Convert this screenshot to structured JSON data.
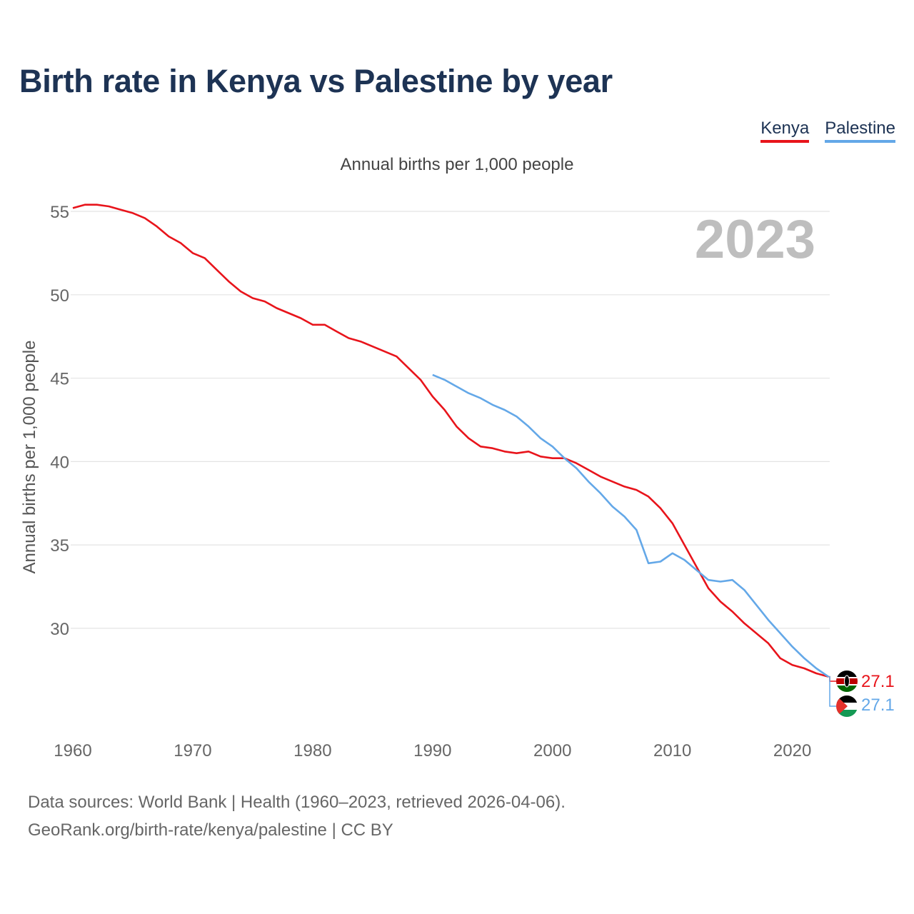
{
  "title": "Birth rate in Kenya vs Palestine by year",
  "subtitle": "Annual births per 1,000 people",
  "year_display": "2023",
  "legend": [
    {
      "label": "Kenya",
      "color": "#e8141b"
    },
    {
      "label": "Palestine",
      "color": "#64a8e8"
    }
  ],
  "footer": {
    "line1": "Data sources: World Bank | Health (1960–2023, retrieved 2026-04-06).",
    "line2": "GeoRank.org/birth-rate/kenya/palestine | CC BY"
  },
  "chart_data": {
    "type": "line",
    "title": "Birth rate in Kenya vs Palestine by year",
    "xlabel": "",
    "ylabel": "Annual births per 1,000 people",
    "xlim": [
      1960,
      2023
    ],
    "ylim": [
      25.5,
      56.5
    ],
    "x_ticks": [
      1960,
      1970,
      1980,
      1990,
      2000,
      2010,
      2020
    ],
    "y_ticks": [
      30,
      35,
      40,
      45,
      50,
      55
    ],
    "grid": true,
    "legend_position": "top-right",
    "series": [
      {
        "name": "Kenya",
        "color": "#e8141b",
        "end_label": "27.1",
        "x": [
          1960,
          1961,
          1962,
          1963,
          1964,
          1965,
          1966,
          1967,
          1968,
          1969,
          1970,
          1971,
          1972,
          1973,
          1974,
          1975,
          1976,
          1977,
          1978,
          1979,
          1980,
          1981,
          1982,
          1983,
          1984,
          1985,
          1986,
          1987,
          1988,
          1989,
          1990,
          1991,
          1992,
          1993,
          1994,
          1995,
          1996,
          1997,
          1998,
          1999,
          2000,
          2001,
          2002,
          2003,
          2004,
          2005,
          2006,
          2007,
          2008,
          2009,
          2010,
          2011,
          2012,
          2013,
          2014,
          2015,
          2016,
          2017,
          2018,
          2019,
          2020,
          2021,
          2022,
          2023
        ],
        "values": [
          55.2,
          55.4,
          55.4,
          55.3,
          55.1,
          54.9,
          54.6,
          54.1,
          53.5,
          53.1,
          52.5,
          52.2,
          51.5,
          50.8,
          50.2,
          49.8,
          49.6,
          49.2,
          48.9,
          48.6,
          48.2,
          48.2,
          47.8,
          47.4,
          47.2,
          46.9,
          46.6,
          46.3,
          45.6,
          44.9,
          43.9,
          43.1,
          42.1,
          41.4,
          40.9,
          40.8,
          40.6,
          40.5,
          40.6,
          40.3,
          40.2,
          40.2,
          39.9,
          39.5,
          39.1,
          38.8,
          38.5,
          38.3,
          37.9,
          37.2,
          36.3,
          35.0,
          33.7,
          32.4,
          31.6,
          31.0,
          30.3,
          29.7,
          29.1,
          28.2,
          27.8,
          27.6,
          27.3,
          27.1
        ]
      },
      {
        "name": "Palestine",
        "color": "#64a8e8",
        "end_label": "27.1",
        "x": [
          1990,
          1991,
          1992,
          1993,
          1994,
          1995,
          1996,
          1997,
          1998,
          1999,
          2000,
          2001,
          2002,
          2003,
          2004,
          2005,
          2006,
          2007,
          2008,
          2009,
          2010,
          2011,
          2012,
          2013,
          2014,
          2015,
          2016,
          2017,
          2018,
          2019,
          2020,
          2021,
          2022,
          2023
        ],
        "values": [
          45.2,
          44.9,
          44.5,
          44.1,
          43.8,
          43.4,
          43.1,
          42.7,
          42.1,
          41.4,
          40.9,
          40.2,
          39.6,
          38.8,
          38.1,
          37.3,
          36.7,
          35.9,
          33.9,
          34.0,
          34.5,
          34.1,
          33.5,
          32.9,
          32.8,
          32.9,
          32.3,
          31.4,
          30.5,
          29.7,
          28.9,
          28.2,
          27.6,
          27.1
        ]
      }
    ]
  }
}
